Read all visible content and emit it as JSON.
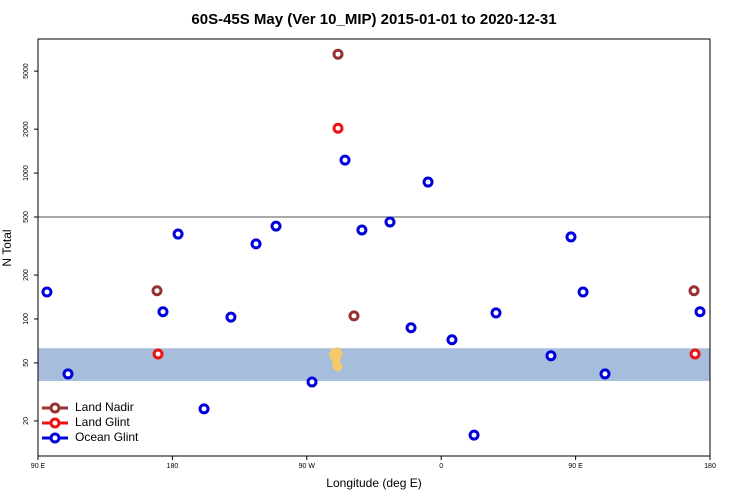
{
  "chart_data": {
    "type": "scatter",
    "title": "60S-45S May (Ver 10_MIP)   2015-01-01 to 2020-12-31",
    "xlabel": "Longitude (deg E)",
    "ylabel": "N Total",
    "xlim": [
      90,
      540
    ],
    "xticks": [
      {
        "value": 90,
        "label": "90 E"
      },
      {
        "value": 180,
        "label": "180"
      },
      {
        "value": 270,
        "label": "90 W"
      },
      {
        "value": 360,
        "label": "0"
      },
      {
        "value": 450,
        "label": "90 E"
      },
      {
        "value": 540,
        "label": "180"
      }
    ],
    "ylim": [
      11.5,
      8300
    ],
    "ylog": true,
    "yticks": [
      20,
      50,
      100,
      200,
      500,
      1000,
      2000,
      5000
    ],
    "hline": 500,
    "hline_color": "#555555",
    "band": [
      37.6,
      63
    ],
    "band_color": "#a7bddc",
    "legend": "lower left",
    "series": [
      {
        "name": "Land Nadir",
        "color": "#993333",
        "x": [
          290.9,
          169.7,
          301.6,
          529.3
        ],
        "values": [
          6530,
          156,
          105,
          156
        ]
      },
      {
        "name": "Land Glint",
        "color": "#ee1111",
        "x": [
          290.9,
          170.4,
          530
        ],
        "values": [
          2030,
          57.5,
          57.5
        ]
      },
      {
        "name": "Ocean Glint",
        "color": "#0000dd",
        "x": [
          96.0,
          110.1,
          173.7,
          183.8,
          201.2,
          219.2,
          236.0,
          249.4,
          273.5,
          295.6,
          306.9,
          325.7,
          339.8,
          351.2,
          367.2,
          382.0,
          396.7,
          433.5,
          446.9,
          455.0,
          469.7,
          533.3
        ],
        "values": [
          153,
          42,
          112,
          382,
          24.2,
          103,
          327,
          433,
          37,
          1228,
          407,
          462,
          87,
          868,
          72,
          16,
          110,
          56,
          365,
          153,
          42,
          112
        ]
      }
    ]
  }
}
